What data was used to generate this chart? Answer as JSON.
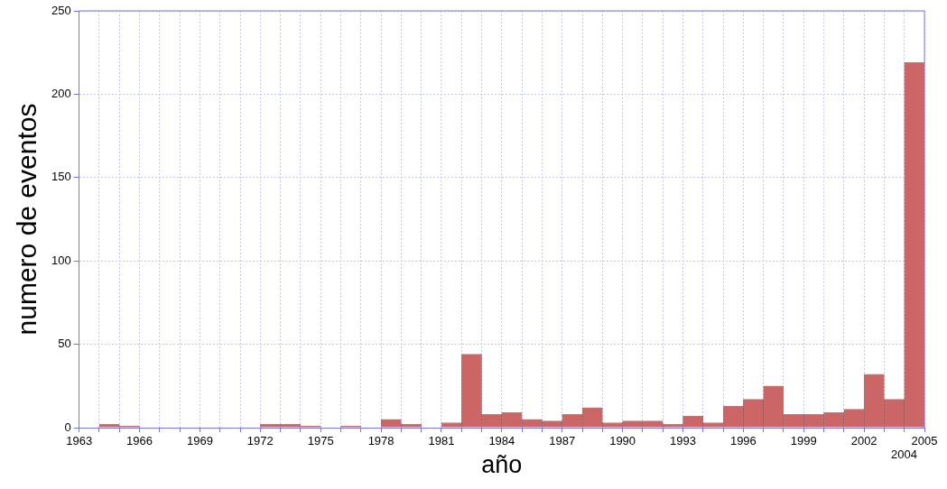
{
  "chart_data": {
    "type": "histogram",
    "xlabel": "año",
    "ylabel": "numero de eventos",
    "bins": [
      1963,
      1964,
      1965,
      1966,
      1967,
      1968,
      1969,
      1970,
      1971,
      1972,
      1973,
      1974,
      1975,
      1976,
      1977,
      1978,
      1979,
      1980,
      1981,
      1982,
      1983,
      1984,
      1985,
      1986,
      1987,
      1988,
      1989,
      1990,
      1991,
      1992,
      1993,
      1994,
      1995,
      1996,
      1997,
      1998,
      1999,
      2000,
      2001,
      2002,
      2003,
      2004,
      2005
    ],
    "values": [
      0,
      2,
      1,
      0,
      0,
      0,
      0,
      0,
      0,
      2,
      2,
      1,
      0,
      1,
      0,
      5,
      2,
      0,
      3,
      44,
      8,
      9,
      5,
      4,
      8,
      12,
      3,
      4,
      4,
      2,
      7,
      3,
      13,
      17,
      25,
      8,
      8,
      9,
      11,
      32,
      17,
      219
    ],
    "color": "#cc6666",
    "xlim": [
      1963,
      2005
    ],
    "xticks": [
      1963,
      {
        "value": 1964,
        "label": null
      },
      {
        "value": 1965,
        "label": null
      },
      1966,
      {
        "value": 1967,
        "label": null
      },
      {
        "value": 1968,
        "label": null
      },
      1969,
      {
        "value": 1970,
        "label": null
      },
      {
        "value": 1971,
        "label": null
      },
      1972,
      {
        "value": 1973,
        "label": null
      },
      {
        "value": 1974,
        "label": null
      },
      1975,
      {
        "value": 1976,
        "label": null
      },
      {
        "value": 1977,
        "label": null
      },
      1978,
      {
        "value": 1979,
        "label": null
      },
      {
        "value": 1980,
        "label": null
      },
      1981,
      {
        "value": 1982,
        "label": null
      },
      {
        "value": 1983,
        "label": null
      },
      1984,
      {
        "value": 1985,
        "label": null
      },
      {
        "value": 1986,
        "label": null
      },
      1987,
      {
        "value": 1988,
        "label": null
      },
      {
        "value": 1989,
        "label": null
      },
      1990,
      {
        "value": 1991,
        "label": null
      },
      {
        "value": 1992,
        "label": null
      },
      1993,
      {
        "value": 1994,
        "label": null
      },
      {
        "value": 1995,
        "label": null
      },
      1996,
      {
        "value": 1997,
        "label": null
      },
      {
        "value": 1998,
        "label": null
      },
      1999,
      {
        "value": 2000,
        "label": null
      },
      {
        "value": 2001,
        "label": null
      },
      2002,
      {
        "value": 2003,
        "label": null
      },
      {
        "value": 2004,
        "label": null
      },
      2005
    ],
    "annotations": [
      "2004"
    ],
    "ylim": [
      0,
      250
    ],
    "yticks": [
      0,
      50,
      100,
      150,
      200,
      250
    ],
    "grid": true,
    "legend": false
  }
}
